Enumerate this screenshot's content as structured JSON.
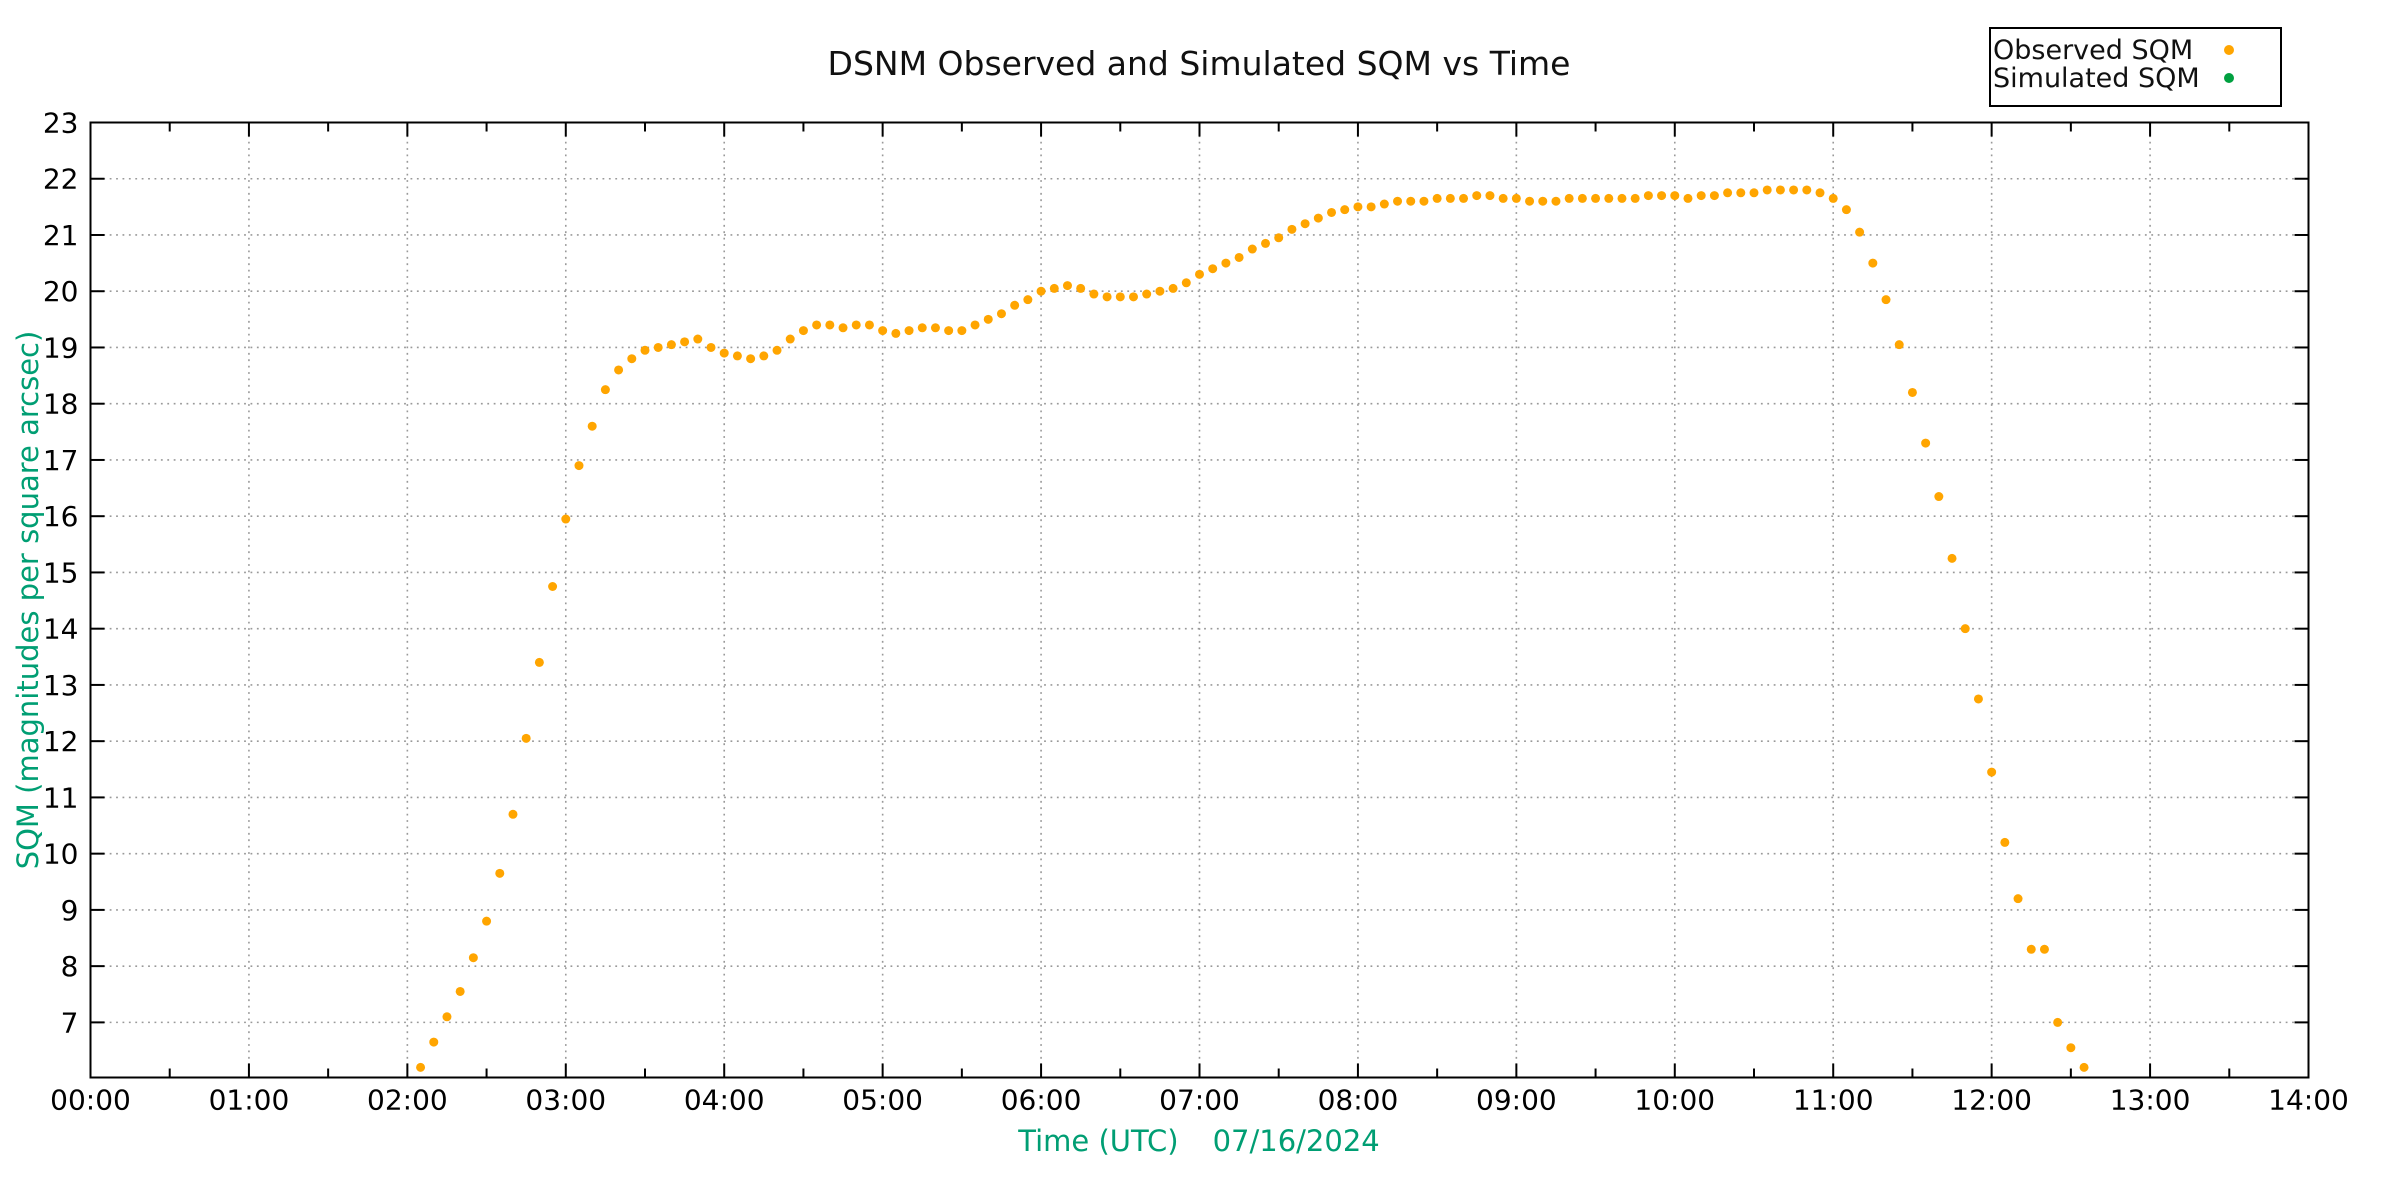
{
  "page": {
    "background": "#ffffff"
  },
  "chart_data": {
    "type": "scatter",
    "title": "DSNM Observed and Simulated SQM vs Time",
    "xlabel": "Time (UTC)",
    "date_label": "07/16/2024",
    "ylabel": "SQM (magnitudes per square arcsec)",
    "axis_label_color": "#009E73",
    "tick_label_color": "#000000",
    "grid": {
      "style": "dotted",
      "color": "#999999"
    },
    "legend_position": "top-right",
    "x_ticks": [
      "00:00",
      "01:00",
      "02:00",
      "03:00",
      "04:00",
      "05:00",
      "06:00",
      "07:00",
      "08:00",
      "09:00",
      "10:00",
      "11:00",
      "12:00",
      "13:00",
      "14:00"
    ],
    "x_range_minutes": [
      0,
      840
    ],
    "x_minor_tick_minutes": 30,
    "y_ticks": [
      7,
      8,
      9,
      10,
      11,
      12,
      13,
      14,
      15,
      16,
      17,
      18,
      19,
      20,
      21,
      22,
      23
    ],
    "y_range": [
      6.02,
      23
    ],
    "series": [
      {
        "name": "Observed SQM",
        "color": "#ffa500",
        "marker": "dot",
        "points": [
          [
            "02:05",
            6.2
          ],
          [
            "02:10",
            6.65
          ],
          [
            "02:15",
            7.1
          ],
          [
            "02:20",
            7.55
          ],
          [
            "02:25",
            8.15
          ],
          [
            "02:30",
            8.8
          ],
          [
            "02:35",
            9.65
          ],
          [
            "02:40",
            10.7
          ],
          [
            "02:45",
            12.05
          ],
          [
            "02:50",
            13.4
          ],
          [
            "02:55",
            14.75
          ],
          [
            "03:00",
            15.95
          ],
          [
            "03:05",
            16.9
          ],
          [
            "03:10",
            17.6
          ],
          [
            "03:15",
            18.25
          ],
          [
            "03:20",
            18.6
          ],
          [
            "03:25",
            18.8
          ],
          [
            "03:30",
            18.95
          ],
          [
            "03:35",
            19.0
          ],
          [
            "03:40",
            19.05
          ],
          [
            "03:45",
            19.1
          ],
          [
            "03:50",
            19.15
          ],
          [
            "03:55",
            19.0
          ],
          [
            "04:00",
            18.9
          ],
          [
            "04:05",
            18.85
          ],
          [
            "04:10",
            18.8
          ],
          [
            "04:15",
            18.85
          ],
          [
            "04:20",
            18.95
          ],
          [
            "04:25",
            19.15
          ],
          [
            "04:30",
            19.3
          ],
          [
            "04:35",
            19.4
          ],
          [
            "04:40",
            19.4
          ],
          [
            "04:45",
            19.35
          ],
          [
            "04:50",
            19.4
          ],
          [
            "04:55",
            19.4
          ],
          [
            "05:00",
            19.3
          ],
          [
            "05:05",
            19.25
          ],
          [
            "05:10",
            19.3
          ],
          [
            "05:15",
            19.35
          ],
          [
            "05:20",
            19.35
          ],
          [
            "05:25",
            19.3
          ],
          [
            "05:30",
            19.3
          ],
          [
            "05:35",
            19.4
          ],
          [
            "05:40",
            19.5
          ],
          [
            "05:45",
            19.6
          ],
          [
            "05:50",
            19.75
          ],
          [
            "05:55",
            19.85
          ],
          [
            "06:00",
            20.0
          ],
          [
            "06:05",
            20.05
          ],
          [
            "06:10",
            20.1
          ],
          [
            "06:15",
            20.05
          ],
          [
            "06:20",
            19.95
          ],
          [
            "06:25",
            19.9
          ],
          [
            "06:30",
            19.9
          ],
          [
            "06:35",
            19.9
          ],
          [
            "06:40",
            19.95
          ],
          [
            "06:45",
            20.0
          ],
          [
            "06:50",
            20.05
          ],
          [
            "06:55",
            20.15
          ],
          [
            "07:00",
            20.3
          ],
          [
            "07:05",
            20.4
          ],
          [
            "07:10",
            20.5
          ],
          [
            "07:15",
            20.6
          ],
          [
            "07:20",
            20.75
          ],
          [
            "07:25",
            20.85
          ],
          [
            "07:30",
            20.95
          ],
          [
            "07:35",
            21.1
          ],
          [
            "07:40",
            21.2
          ],
          [
            "07:45",
            21.3
          ],
          [
            "07:50",
            21.4
          ],
          [
            "07:55",
            21.45
          ],
          [
            "08:00",
            21.5
          ],
          [
            "08:05",
            21.5
          ],
          [
            "08:10",
            21.55
          ],
          [
            "08:15",
            21.6
          ],
          [
            "08:20",
            21.6
          ],
          [
            "08:25",
            21.6
          ],
          [
            "08:30",
            21.65
          ],
          [
            "08:35",
            21.65
          ],
          [
            "08:40",
            21.65
          ],
          [
            "08:45",
            21.7
          ],
          [
            "08:50",
            21.7
          ],
          [
            "08:55",
            21.65
          ],
          [
            "09:00",
            21.65
          ],
          [
            "09:05",
            21.6
          ],
          [
            "09:10",
            21.6
          ],
          [
            "09:15",
            21.6
          ],
          [
            "09:20",
            21.65
          ],
          [
            "09:25",
            21.65
          ],
          [
            "09:30",
            21.65
          ],
          [
            "09:35",
            21.65
          ],
          [
            "09:40",
            21.65
          ],
          [
            "09:45",
            21.65
          ],
          [
            "09:50",
            21.7
          ],
          [
            "09:55",
            21.7
          ],
          [
            "10:00",
            21.7
          ],
          [
            "10:05",
            21.65
          ],
          [
            "10:10",
            21.7
          ],
          [
            "10:15",
            21.7
          ],
          [
            "10:20",
            21.75
          ],
          [
            "10:25",
            21.75
          ],
          [
            "10:30",
            21.75
          ],
          [
            "10:35",
            21.8
          ],
          [
            "10:40",
            21.8
          ],
          [
            "10:45",
            21.8
          ],
          [
            "10:50",
            21.8
          ],
          [
            "10:55",
            21.75
          ],
          [
            "11:00",
            21.65
          ],
          [
            "11:05",
            21.45
          ],
          [
            "11:10",
            21.05
          ],
          [
            "11:15",
            20.5
          ],
          [
            "11:20",
            19.85
          ],
          [
            "11:25",
            19.05
          ],
          [
            "11:30",
            18.2
          ],
          [
            "11:35",
            17.3
          ],
          [
            "11:40",
            16.35
          ],
          [
            "11:45",
            15.25
          ],
          [
            "11:50",
            14.0
          ],
          [
            "11:55",
            12.75
          ],
          [
            "12:00",
            11.45
          ],
          [
            "12:05",
            10.2
          ],
          [
            "12:10",
            9.2
          ],
          [
            "12:15",
            8.3
          ],
          [
            "12:20",
            8.3
          ],
          [
            "12:25",
            7.0
          ],
          [
            "12:30",
            6.55
          ],
          [
            "12:35",
            6.2
          ]
        ]
      },
      {
        "name": "Simulated SQM",
        "color": "#00a040",
        "marker": "dot",
        "points": []
      }
    ]
  }
}
